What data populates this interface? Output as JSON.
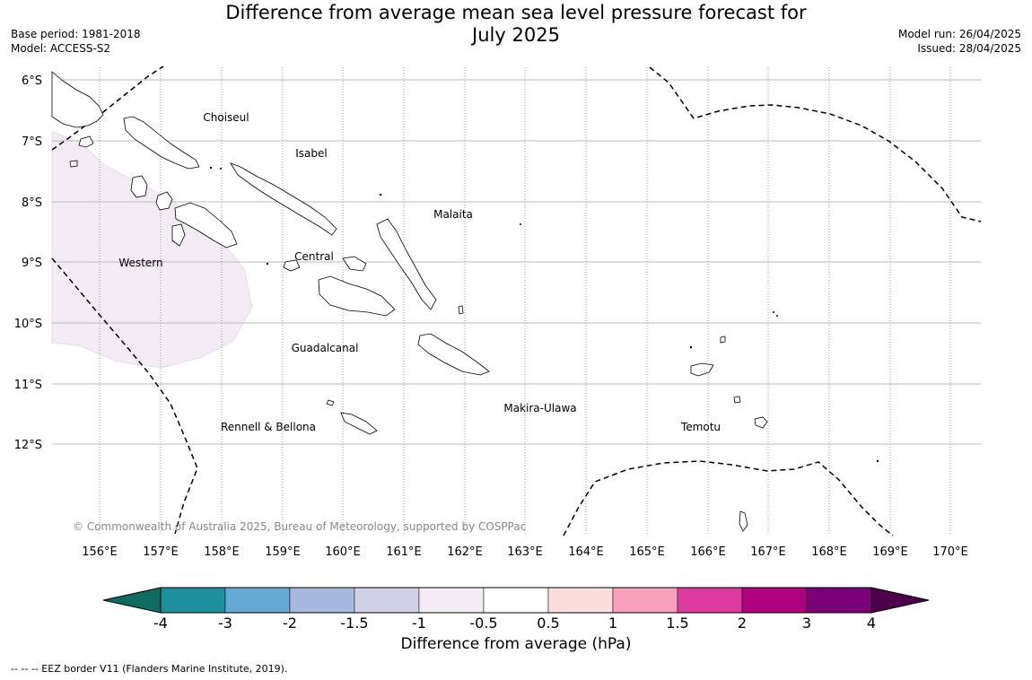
{
  "title_line1": "Difference from average mean sea level pressure forecast for",
  "title_line2": "July 2025",
  "meta_left": {
    "base_period": "Base period: 1981-2018",
    "model": "Model: ACCESS-S2"
  },
  "meta_right": {
    "model_run": "Model run: 26/04/2025",
    "issued": "Issued: 28/04/2025"
  },
  "lat_labels": [
    "6°S",
    "7°S",
    "8°S",
    "9°S",
    "10°S",
    "11°S",
    "12°S"
  ],
  "lon_labels": [
    "156°E",
    "157°E",
    "158°E",
    "159°E",
    "160°E",
    "161°E",
    "162°E",
    "163°E",
    "164°E",
    "165°E",
    "166°E",
    "167°E",
    "168°E",
    "169°E",
    "170°E"
  ],
  "regions": [
    "Choiseul",
    "Isabel",
    "Malaita",
    "Western",
    "Central",
    "Guadalcanal",
    "Makira-Ulawa",
    "Rennell & Bellona",
    "Temotu"
  ],
  "copyright": "© Commonwealth of Australia 2025, Bureau of Meteorology, supported by COSPPac",
  "colorbar": {
    "ticks": [
      "-4",
      "-3",
      "-2",
      "-1.5",
      "-1",
      "-0.5",
      "0.5",
      "1",
      "1.5",
      "2",
      "3",
      "4"
    ],
    "colors": [
      "#0e6b5f",
      "#1e8f9c",
      "#66a9d2",
      "#a7b9dc",
      "#cfd0e6",
      "#f3ecf4",
      "#ffffff",
      "#fddede",
      "#f8a1bd",
      "#dd3b9d",
      "#ae017e",
      "#7a0177",
      "#4d004b"
    ],
    "label": "Difference from average (hPa)"
  },
  "footer": "--  --  -- EEZ border V11 (Flanders Marine Institute, 2019)."
}
